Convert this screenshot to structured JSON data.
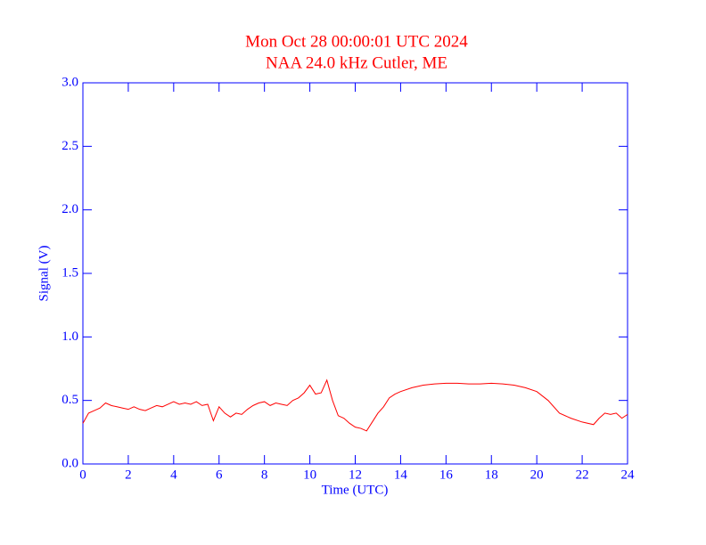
{
  "chart_data": {
    "type": "line",
    "title": "Mon Oct 28 00:00:01 UTC 2024",
    "subtitle": "NAA 24.0 kHz Cutler, ME",
    "x_label": "Time (UTC)",
    "y_label": "Signal (V)",
    "xlim": [
      0,
      24
    ],
    "xticks": [
      0,
      2,
      4,
      6,
      8,
      10,
      12,
      14,
      16,
      18,
      20,
      22,
      24
    ],
    "ylim": [
      0,
      3
    ],
    "yticks": [
      {
        "value": 0,
        "label": "0.0"
      },
      0.5,
      {
        "value": 1,
        "label": "1.0"
      },
      1.5,
      {
        "value": 2,
        "label": "2.0"
      },
      2.5,
      {
        "value": 3,
        "label": "3.0"
      }
    ],
    "series": [
      {
        "color": "#ff0000",
        "x": [
          0,
          0.25,
          0.5,
          0.75,
          1,
          1.25,
          1.5,
          1.75,
          2,
          2.25,
          2.5,
          2.75,
          3,
          3.25,
          3.5,
          3.75,
          4,
          4.25,
          4.5,
          4.75,
          5,
          5.25,
          5.5,
          5.75,
          6,
          6.25,
          6.5,
          6.75,
          7,
          7.25,
          7.5,
          7.75,
          8,
          8.25,
          8.5,
          8.75,
          9,
          9.25,
          9.5,
          9.75,
          10,
          10.25,
          10.5,
          10.75,
          11,
          11.25,
          11.5,
          11.75,
          12,
          12.25,
          12.5,
          12.75,
          13,
          13.25,
          13.5,
          13.75,
          14,
          14.5,
          15,
          15.5,
          16,
          16.5,
          17,
          17.5,
          18,
          18.5,
          19,
          19.5,
          20,
          20.5,
          21,
          21.5,
          22,
          22.5,
          22.75,
          23,
          23.25,
          23.5,
          23.75,
          24
        ],
        "values": [
          0.32,
          0.4,
          0.42,
          0.44,
          0.48,
          0.46,
          0.45,
          0.44,
          0.43,
          0.45,
          0.43,
          0.42,
          0.44,
          0.46,
          0.45,
          0.47,
          0.49,
          0.47,
          0.48,
          0.47,
          0.49,
          0.46,
          0.47,
          0.34,
          0.45,
          0.4,
          0.37,
          0.4,
          0.39,
          0.43,
          0.46,
          0.48,
          0.49,
          0.46,
          0.48,
          0.47,
          0.46,
          0.5,
          0.52,
          0.56,
          0.62,
          0.55,
          0.56,
          0.66,
          0.5,
          0.38,
          0.36,
          0.32,
          0.29,
          0.28,
          0.26,
          0.33,
          0.4,
          0.45,
          0.52,
          0.55,
          0.57,
          0.6,
          0.62,
          0.63,
          0.635,
          0.635,
          0.63,
          0.63,
          0.635,
          0.63,
          0.62,
          0.6,
          0.57,
          0.5,
          0.4,
          0.36,
          0.33,
          0.31,
          0.36,
          0.4,
          0.39,
          0.4,
          0.36,
          0.39
        ]
      }
    ]
  }
}
